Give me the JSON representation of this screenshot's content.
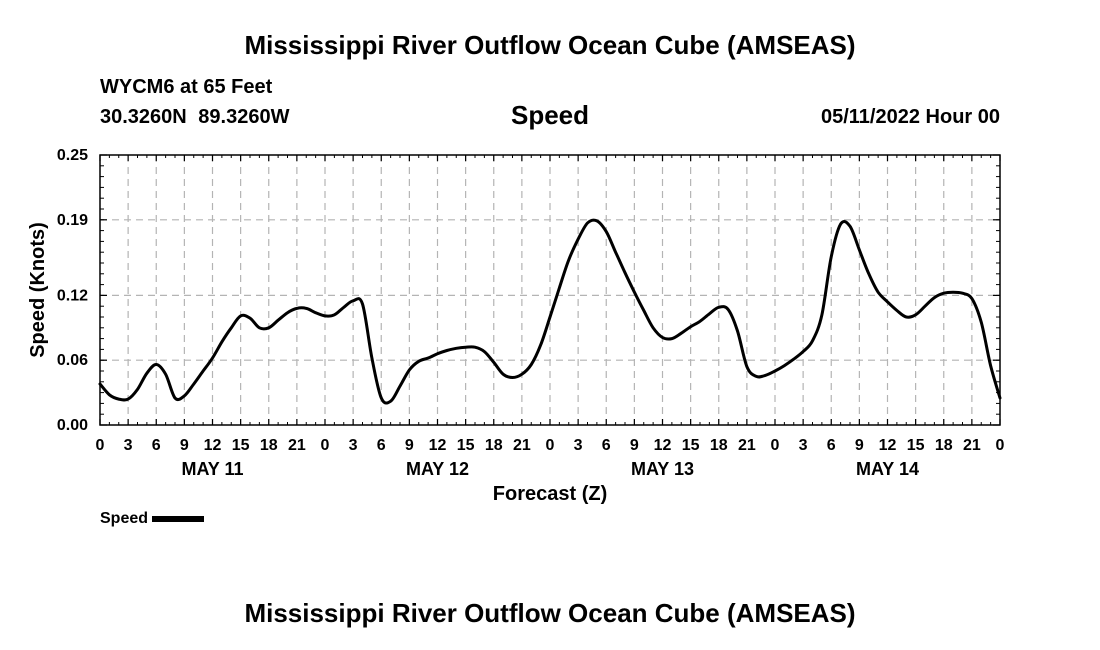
{
  "header": {
    "title": "Mississippi River Outflow Ocean Cube (AMSEAS)",
    "station": "WYCM6 at 65 Feet",
    "coords": "30.3260N  89.3260W",
    "variable": "Speed",
    "datetime": "05/11/2022 Hour 00"
  },
  "footer": {
    "title": "Mississippi River Outflow Ocean Cube (AMSEAS)"
  },
  "legend": {
    "label": "Speed"
  },
  "chart_data": {
    "type": "line",
    "title": "Speed",
    "xlabel": "Forecast (Z)",
    "ylabel": "Speed (Knots)",
    "xlim": [
      0,
      96
    ],
    "ylim": [
      0,
      0.25
    ],
    "grid": true,
    "legend_position": "bottom-left",
    "yticks": [
      0.0,
      0.06,
      0.12,
      0.19,
      0.25
    ],
    "ytick_labels": [
      "0.00",
      "0.06",
      "0.12",
      "0.19",
      "0.25"
    ],
    "xticks": [
      0,
      3,
      6,
      9,
      12,
      15,
      18,
      21,
      24,
      27,
      30,
      33,
      36,
      39,
      42,
      45,
      48,
      51,
      54,
      57,
      60,
      63,
      66,
      69,
      72,
      75,
      78,
      81,
      84,
      87,
      90,
      93,
      96
    ],
    "xtick_labels": [
      "0",
      "3",
      "6",
      "9",
      "12",
      "15",
      "18",
      "21",
      "0",
      "3",
      "6",
      "9",
      "12",
      "15",
      "18",
      "21",
      "0",
      "3",
      "6",
      "9",
      "12",
      "15",
      "18",
      "21",
      "0",
      "3",
      "6",
      "9",
      "12",
      "15",
      "18",
      "21",
      "0"
    ],
    "date_labels": [
      {
        "hour": 12,
        "label": "MAY 11"
      },
      {
        "hour": 36,
        "label": "MAY 12"
      },
      {
        "hour": 60,
        "label": "MAY 13"
      },
      {
        "hour": 84,
        "label": "MAY 14"
      }
    ],
    "series": [
      {
        "name": "Speed",
        "color": "#000000",
        "x": [
          0,
          1,
          2,
          3,
          4,
          5,
          6,
          7,
          8,
          9,
          10,
          11,
          12,
          13,
          14,
          15,
          16,
          17,
          18,
          19,
          20,
          21,
          22,
          23,
          24,
          25,
          26,
          27,
          28,
          29,
          30,
          31,
          32,
          33,
          34,
          35,
          36,
          37,
          38,
          39,
          40,
          41,
          42,
          43,
          44,
          45,
          46,
          47,
          48,
          49,
          50,
          51,
          52,
          53,
          54,
          55,
          56,
          57,
          58,
          59,
          60,
          61,
          62,
          63,
          64,
          65,
          66,
          67,
          68,
          69,
          70,
          71,
          72,
          73,
          74,
          75,
          76,
          77,
          78,
          79,
          80,
          81,
          82,
          83,
          84,
          85,
          86,
          87,
          88,
          89,
          90,
          91,
          92,
          93,
          94,
          95,
          96
        ],
        "values": [
          0.038,
          0.028,
          0.024,
          0.024,
          0.033,
          0.048,
          0.056,
          0.047,
          0.025,
          0.027,
          0.038,
          0.05,
          0.062,
          0.077,
          0.09,
          0.101,
          0.099,
          0.09,
          0.09,
          0.097,
          0.104,
          0.108,
          0.108,
          0.104,
          0.101,
          0.102,
          0.109,
          0.115,
          0.112,
          0.062,
          0.025,
          0.022,
          0.036,
          0.051,
          0.059,
          0.062,
          0.066,
          0.069,
          0.071,
          0.072,
          0.072,
          0.068,
          0.058,
          0.047,
          0.044,
          0.047,
          0.056,
          0.074,
          0.1,
          0.127,
          0.153,
          0.172,
          0.187,
          0.189,
          0.179,
          0.16,
          0.141,
          0.123,
          0.106,
          0.09,
          0.081,
          0.08,
          0.085,
          0.091,
          0.096,
          0.103,
          0.109,
          0.107,
          0.087,
          0.054,
          0.045,
          0.046,
          0.05,
          0.055,
          0.061,
          0.068,
          0.078,
          0.102,
          0.156,
          0.186,
          0.184,
          0.162,
          0.14,
          0.123,
          0.114,
          0.106,
          0.1,
          0.102,
          0.11,
          0.118,
          0.122,
          0.123,
          0.122,
          0.117,
          0.095,
          0.055,
          0.025
        ]
      }
    ]
  }
}
